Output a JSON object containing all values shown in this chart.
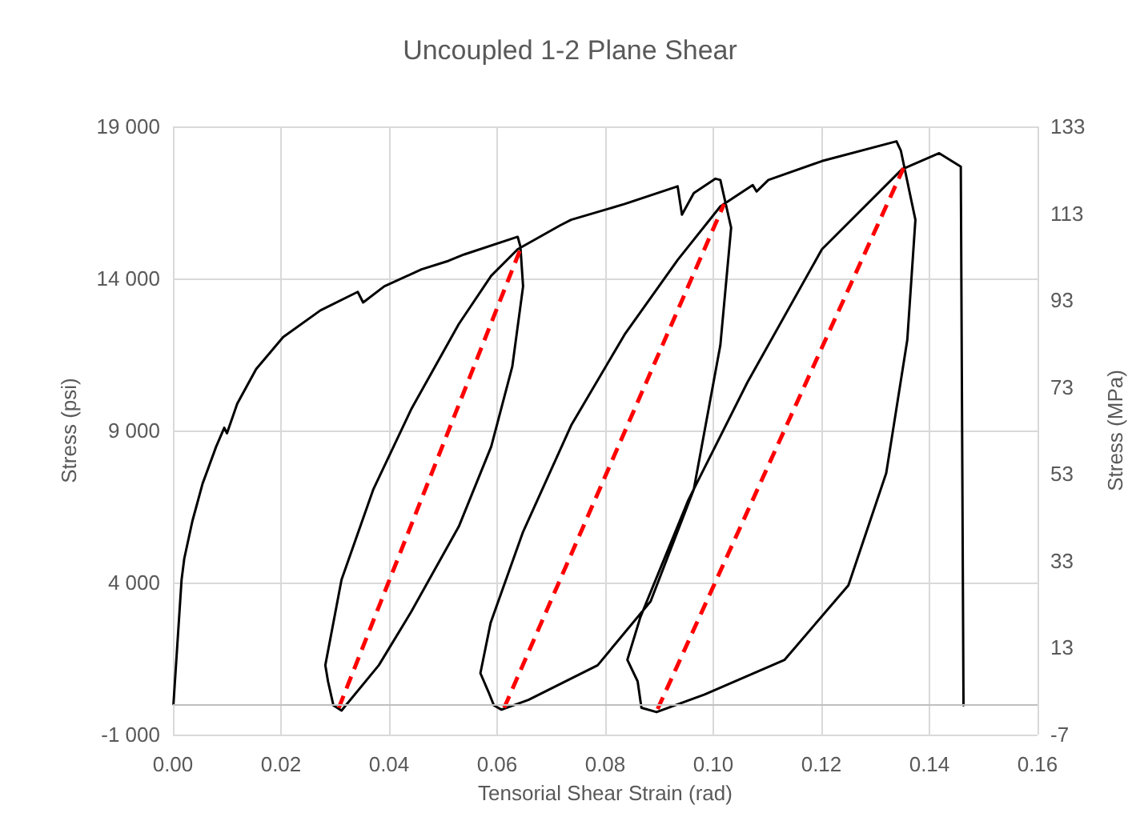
{
  "chart_data": {
    "type": "line",
    "title": "Uncoupled 1-2 Plane Shear",
    "xlabel": "Tensorial Shear Strain (rad)",
    "ylabel": "Stress (psi)",
    "y2label": "Stress (MPa)",
    "xlim": [
      0,
      0.16
    ],
    "xticks": [
      {
        "value": 0,
        "label": "0.00"
      },
      {
        "value": 0.02,
        "label": "0.02"
      },
      {
        "value": 0.04,
        "label": "0.04"
      },
      {
        "value": 0.06,
        "label": "0.06"
      },
      {
        "value": 0.08,
        "label": "0.08"
      },
      {
        "value": 0.1,
        "label": "0.10"
      },
      {
        "value": 0.12,
        "label": "0.12"
      },
      {
        "value": 0.14,
        "label": "0.14"
      },
      {
        "value": 0.16,
        "label": "0.16"
      }
    ],
    "ylim": [
      -1000,
      19000
    ],
    "yticks": [
      {
        "value": -1000,
        "label": "-1 000"
      },
      {
        "value": 4000,
        "label": "4 000"
      },
      {
        "value": 9000,
        "label": "9 000"
      },
      {
        "value": 14000,
        "label": "14 000"
      },
      {
        "value": 19000,
        "label": "19 000"
      }
    ],
    "y2lim": [
      -7,
      133
    ],
    "y2ticks": [
      -7,
      13,
      33,
      53,
      73,
      93,
      113,
      133
    ],
    "grid": true,
    "marker": "none",
    "ref_lines": [
      {
        "axis": "y",
        "value": 0,
        "color": "#bfbfbf"
      }
    ],
    "series": [
      {
        "color": "#000000",
        "line_style": "solid",
        "x": [
          0.0001,
          0.0016,
          0.0021,
          0.0036,
          0.0055,
          0.008,
          0.0095,
          0.01,
          0.0119,
          0.0154,
          0.0204,
          0.0273,
          0.0342,
          0.0352,
          0.0391,
          0.046,
          0.051,
          0.0539,
          0.0638,
          0.0643,
          0.0648,
          0.0628,
          0.0589,
          0.0529,
          0.0441,
          0.0381,
          0.0312,
          0.0297,
          0.0287,
          0.0282,
          0.0312,
          0.0371,
          0.0441,
          0.0529,
          0.0589,
          0.0638,
          0.0717,
          0.0737,
          0.0836,
          0.0934,
          0.0942,
          0.0964,
          0.1004,
          0.1013,
          0.1033,
          0.1013,
          0.0964,
          0.0884,
          0.0786,
          0.0658,
          0.0608,
          0.0594,
          0.0584,
          0.0569,
          0.0588,
          0.0648,
          0.0737,
          0.0836,
          0.0934,
          0.1013,
          0.1073,
          0.108,
          0.1102,
          0.1201,
          0.1339,
          0.1347,
          0.1374,
          0.1359,
          0.132,
          0.125,
          0.1132,
          0.0984,
          0.0895,
          0.0867,
          0.086,
          0.0841,
          0.0865,
          0.0954,
          0.1063,
          0.1201,
          0.1349,
          0.1418,
          0.1458,
          0.1463
        ],
        "values": [
          0,
          4090,
          4790,
          6020,
          7260,
          8470,
          9090,
          8910,
          9880,
          11020,
          12070,
          12950,
          13560,
          13210,
          13740,
          14300,
          14580,
          14790,
          15370,
          15050,
          13740,
          11100,
          8470,
          5840,
          3040,
          1280,
          -210,
          -40,
          750,
          1280,
          4090,
          7070,
          9700,
          12500,
          14090,
          14960,
          15750,
          15930,
          16450,
          17030,
          16100,
          16810,
          17280,
          17240,
          15670,
          11800,
          7070,
          3380,
          1280,
          140,
          -180,
          -40,
          400,
          1020,
          2680,
          5670,
          9170,
          12160,
          14610,
          16370,
          17070,
          16860,
          17240,
          17860,
          18510,
          18210,
          15930,
          11980,
          7600,
          3910,
          1460,
          320,
          -260,
          -120,
          750,
          1460,
          2860,
          6720,
          10580,
          14960,
          17590,
          18120,
          17680,
          -40
        ]
      },
      {
        "color": "#ff0000",
        "line_style": "dashed",
        "x": [
          0.0307,
          0.0643
        ],
        "values": [
          -120,
          14960
        ]
      },
      {
        "color": "#ff0000",
        "line_style": "dashed",
        "x": [
          0.0613,
          0.102
        ],
        "values": [
          -120,
          16450
        ]
      },
      {
        "color": "#ff0000",
        "line_style": "dashed",
        "x": [
          0.0897,
          0.1352
        ],
        "values": [
          -160,
          17630
        ]
      }
    ]
  }
}
